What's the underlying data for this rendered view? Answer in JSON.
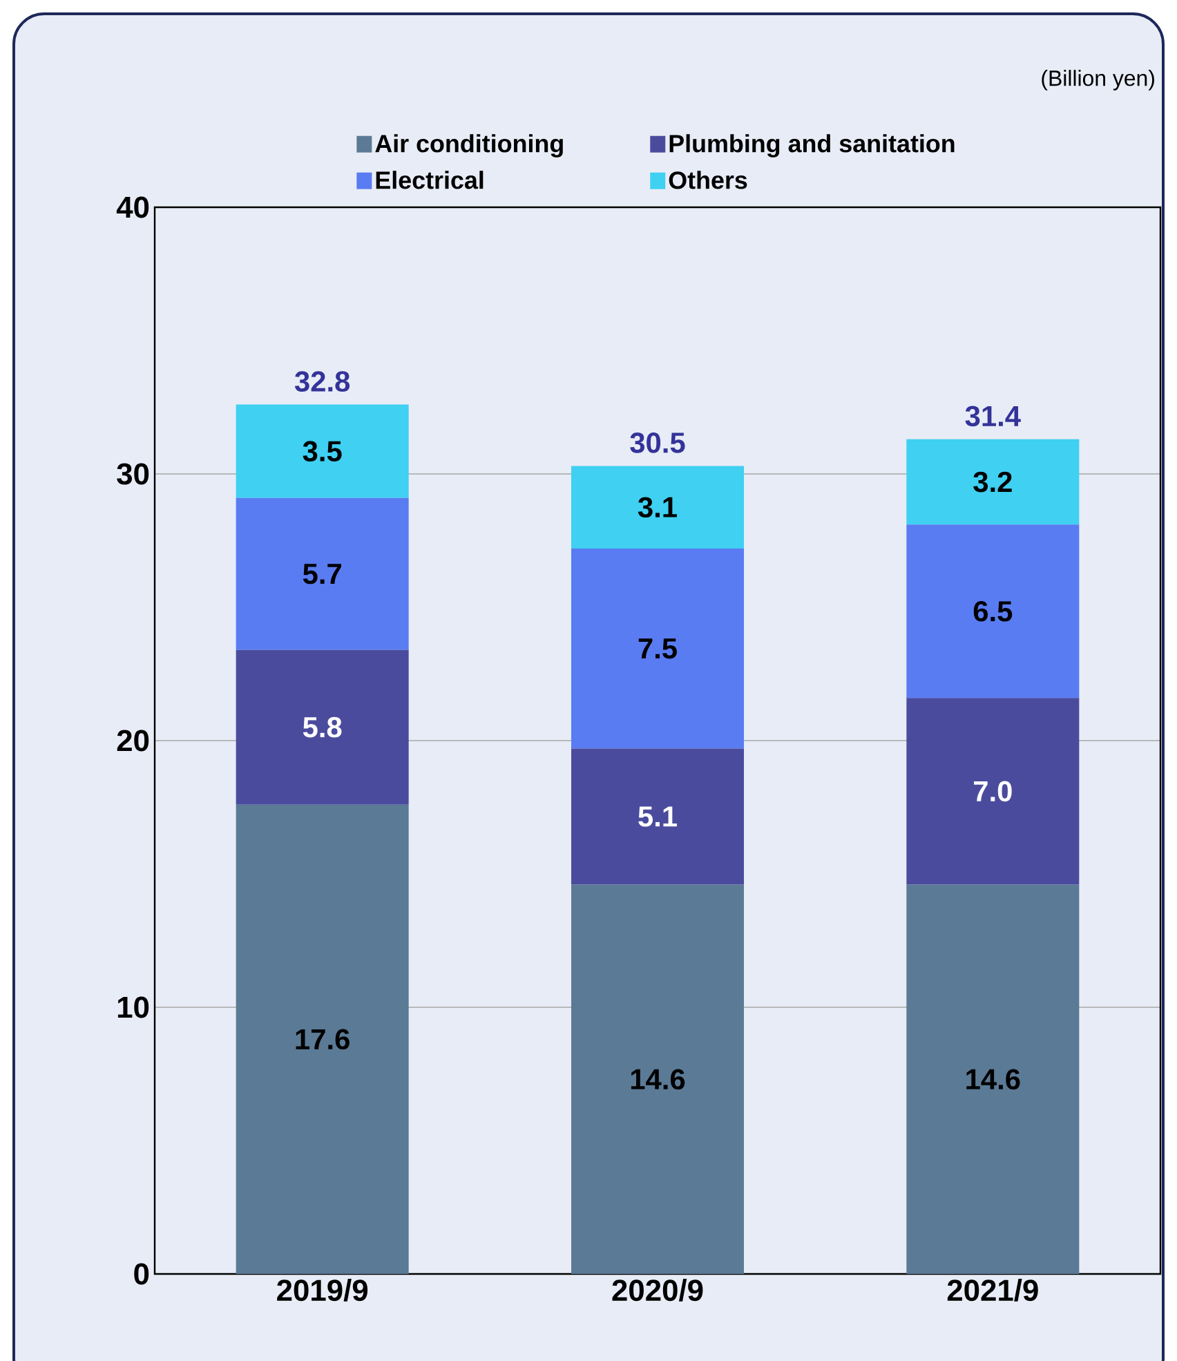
{
  "chart_data": {
    "type": "bar",
    "stacked": true,
    "categories": [
      "2019/9",
      "2020/9",
      "2021/9"
    ],
    "series": [
      {
        "name": "Air conditioning",
        "color": "#5b7a95",
        "values": [
          17.6,
          14.6,
          14.6
        ],
        "value_labels": [
          "17.6",
          "14.6",
          "14.6"
        ]
      },
      {
        "name": "Plumbing and sanitation",
        "color": "#4b4b9e",
        "values": [
          5.8,
          5.1,
          7.0
        ],
        "value_labels": [
          "5.8",
          "5.1",
          "7.0"
        ]
      },
      {
        "name": "Electrical",
        "color": "#5a7cf2",
        "values": [
          5.7,
          7.5,
          6.5
        ],
        "value_labels": [
          "5.7",
          "7.5",
          "6.5"
        ]
      },
      {
        "name": "Others",
        "color": "#3fd0f2",
        "values": [
          3.5,
          3.1,
          3.2
        ],
        "value_labels": [
          "3.5",
          "3.1",
          "3.2"
        ]
      }
    ],
    "totals": [
      "32.8",
      "30.5",
      "31.4"
    ],
    "ylim": [
      0,
      40
    ],
    "yticks": [
      0,
      10,
      20,
      30,
      40
    ],
    "grid": "y",
    "legend": "top",
    "annotations": [
      "(Billion yen)"
    ]
  }
}
